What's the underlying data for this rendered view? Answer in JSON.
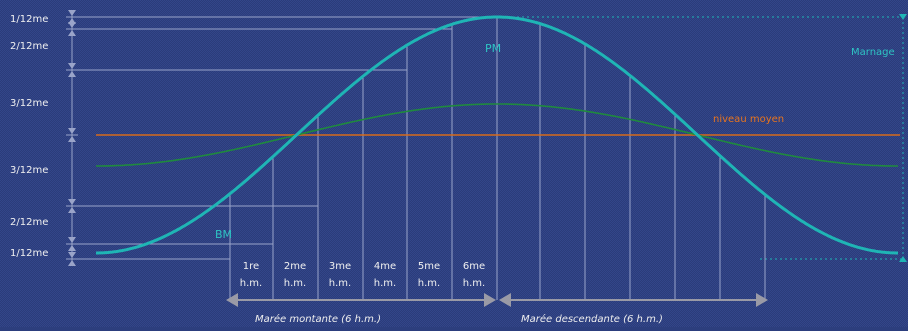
{
  "colors": {
    "background": "#2c3e7d",
    "guide": "#9aa4c9",
    "tide_curve": "#1fb5b5",
    "mean_curve": "#1f8a3e",
    "mean_line": "#d86a1a",
    "label_white": "#f0f0f0",
    "label_teal": "#2ec4c4",
    "label_orange": "#e8741e",
    "arrow_gray": "#9a9aa6"
  },
  "left_scale": {
    "labels": [
      "1/12me",
      "2/12me",
      "3/12me",
      "3/12me",
      "2/12me",
      "1/12me"
    ]
  },
  "curve_labels": {
    "pm": "PM",
    "bm": "BM",
    "marnage": "Marnage",
    "niveau_moyen": "niveau moyen"
  },
  "hour_labels": [
    {
      "top": "1re",
      "bottom": "h.m."
    },
    {
      "top": "2me",
      "bottom": "h.m."
    },
    {
      "top": "3me",
      "bottom": "h.m."
    },
    {
      "top": "4me",
      "bottom": "h.m."
    },
    {
      "top": "5me",
      "bottom": "h.m."
    },
    {
      "top": "6me",
      "bottom": "h.m."
    }
  ],
  "phases": {
    "rising": "Marée montante (6 h.m.)",
    "falling": "Marée descendante (6 h.m.)"
  }
}
